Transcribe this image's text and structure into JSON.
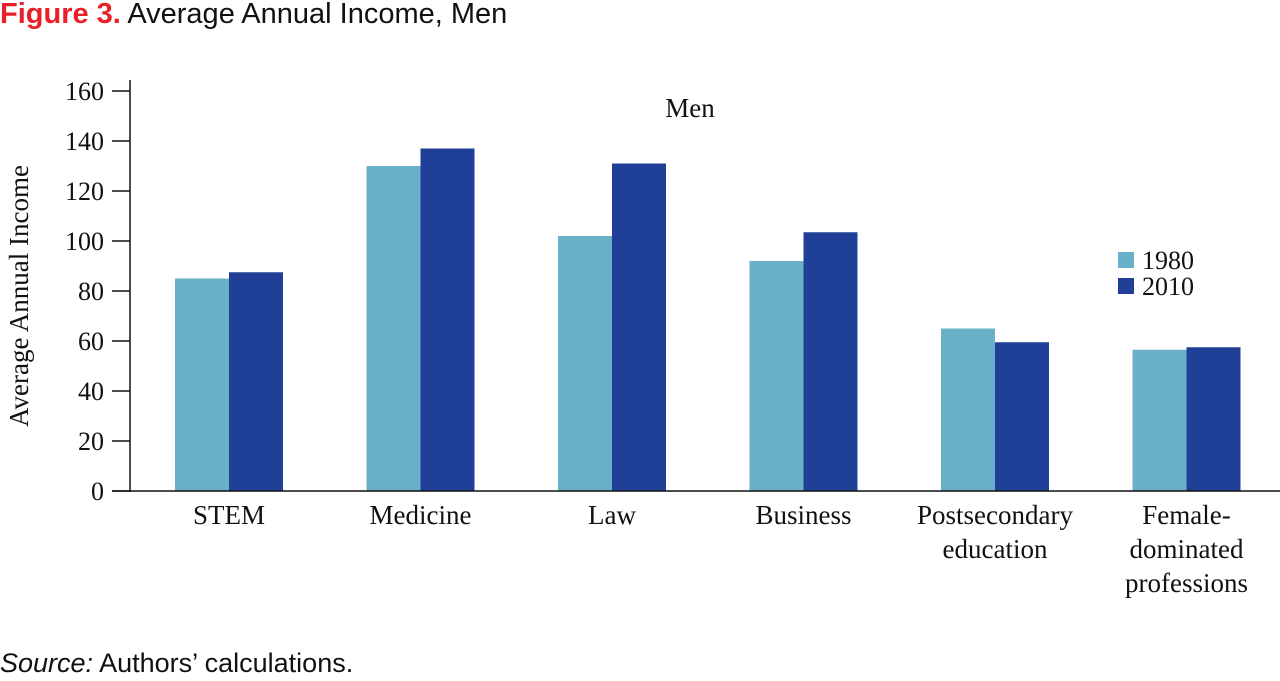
{
  "figure": {
    "label": "Figure 3.",
    "title": "Average Annual Income, Men"
  },
  "source": {
    "label": "Source:",
    "text": "Authors’ calculations."
  },
  "colors": {
    "series_1980": "#6ab0c8",
    "series_2010": "#1f4096",
    "axis": "#111111",
    "figure_label": "#e8202a"
  },
  "chart_data": {
    "type": "bar",
    "title": "Men",
    "xlabel": "",
    "ylabel": "Average Annual Income",
    "ylim": [
      0,
      160
    ],
    "yticks": [
      0,
      20,
      40,
      60,
      80,
      100,
      120,
      140,
      160
    ],
    "grid": false,
    "legend_position": "right",
    "categories": [
      [
        "STEM"
      ],
      [
        "Medicine"
      ],
      [
        "Law"
      ],
      [
        "Business"
      ],
      [
        "Postsecondary",
        "education"
      ],
      [
        "Female-",
        "dominated",
        "professions"
      ]
    ],
    "series": [
      {
        "name": "1980",
        "color": "#6ab0c8",
        "values": [
          85,
          130,
          102,
          92,
          65,
          56.5
        ]
      },
      {
        "name": "2010",
        "color": "#1f4096",
        "values": [
          87.5,
          137,
          131,
          103.5,
          59.5,
          57.5
        ]
      }
    ]
  }
}
